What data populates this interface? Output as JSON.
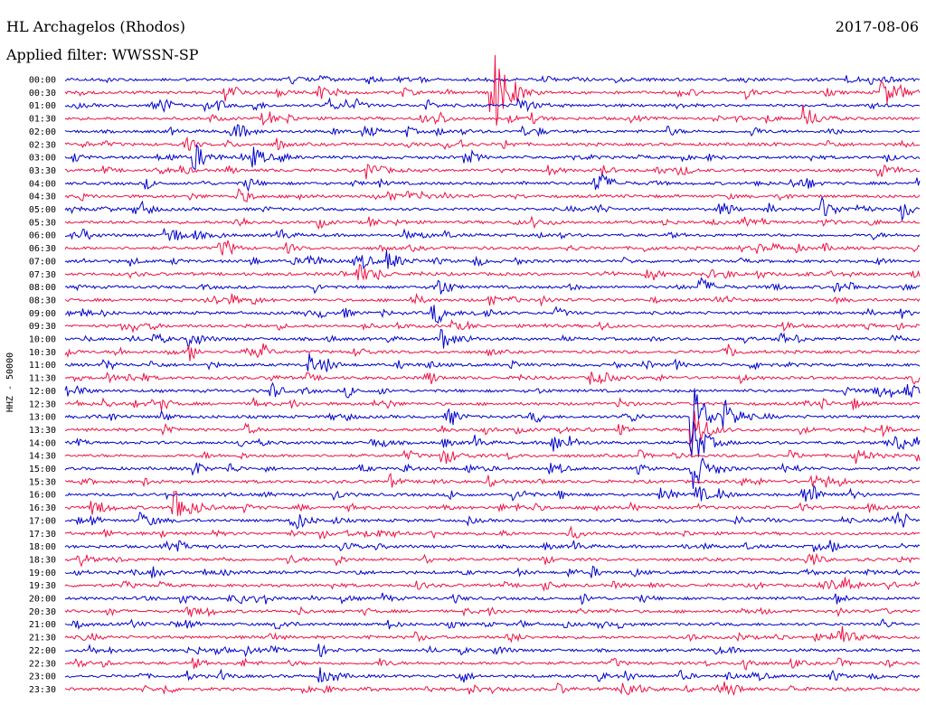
{
  "header": {
    "station": "HL Archagelos (Rhodos)",
    "filter": "Applied filter: WWSSN-SP",
    "date": "2017-08-06"
  },
  "chart_data": {
    "type": "line",
    "title": "HL Archagelos (Rhodos)",
    "subtitle": "Applied filter: WWSSN-SP",
    "ylabel": "HHZ - 50000",
    "rows": [
      "00:00",
      "00:30",
      "01:00",
      "01:30",
      "02:00",
      "02:30",
      "03:00",
      "03:30",
      "04:00",
      "04:30",
      "05:00",
      "05:30",
      "06:00",
      "06:30",
      "07:00",
      "07:30",
      "08:00",
      "08:30",
      "09:00",
      "09:30",
      "10:00",
      "10:30",
      "11:00",
      "11:30",
      "12:00",
      "12:30",
      "13:00",
      "13:30",
      "14:00",
      "14:30",
      "15:00",
      "15:30",
      "16:00",
      "16:30",
      "17:00",
      "17:30",
      "18:00",
      "18:30",
      "19:00",
      "19:30",
      "20:00",
      "20:30",
      "21:00",
      "21:30",
      "22:00",
      "22:30",
      "23:00",
      "23:30"
    ],
    "colors": [
      "#0000cc",
      "#ee1144"
    ],
    "events": [
      {
        "row": 1,
        "x": 545,
        "amp": 55
      },
      {
        "row": 1,
        "x": 250,
        "amp": 10
      },
      {
        "row": 1,
        "x": 977,
        "amp": 16
      },
      {
        "row": 2,
        "x": 575,
        "amp": 9
      },
      {
        "row": 3,
        "x": 890,
        "amp": 14
      },
      {
        "row": 4,
        "x": 258,
        "amp": 9
      },
      {
        "row": 6,
        "x": 215,
        "amp": 16
      },
      {
        "row": 6,
        "x": 282,
        "amp": 10
      },
      {
        "row": 7,
        "x": 408,
        "amp": 10
      },
      {
        "row": 8,
        "x": 660,
        "amp": 14
      },
      {
        "row": 10,
        "x": 997,
        "amp": 12
      },
      {
        "row": 10,
        "x": 910,
        "amp": 12
      },
      {
        "row": 12,
        "x": 185,
        "amp": 10
      },
      {
        "row": 14,
        "x": 430,
        "amp": 11
      },
      {
        "row": 14,
        "x": 340,
        "amp": 9
      },
      {
        "row": 15,
        "x": 398,
        "amp": 10
      },
      {
        "row": 16,
        "x": 775,
        "amp": 10
      },
      {
        "row": 18,
        "x": 480,
        "amp": 9
      },
      {
        "row": 20,
        "x": 490,
        "amp": 11
      },
      {
        "row": 20,
        "x": 210,
        "amp": 10
      },
      {
        "row": 22,
        "x": 343,
        "amp": 12
      },
      {
        "row": 23,
        "x": 655,
        "amp": 9
      },
      {
        "row": 24,
        "x": 1003,
        "amp": 9
      },
      {
        "row": 26,
        "x": 766,
        "amp": 44
      },
      {
        "row": 26,
        "x": 802,
        "amp": 16
      },
      {
        "row": 27,
        "x": 766,
        "amp": 30
      },
      {
        "row": 28,
        "x": 766,
        "amp": 30
      },
      {
        "row": 28,
        "x": 612,
        "amp": 10
      },
      {
        "row": 29,
        "x": 490,
        "amp": 11
      },
      {
        "row": 30,
        "x": 766,
        "amp": 26
      },
      {
        "row": 32,
        "x": 890,
        "amp": 11
      },
      {
        "row": 32,
        "x": 770,
        "amp": 10
      },
      {
        "row": 33,
        "x": 194,
        "amp": 24
      },
      {
        "row": 33,
        "x": 104,
        "amp": 10
      },
      {
        "row": 34,
        "x": 325,
        "amp": 11
      },
      {
        "row": 34,
        "x": 157,
        "amp": 9
      },
      {
        "row": 39,
        "x": 935,
        "amp": 9
      },
      {
        "row": 43,
        "x": 925,
        "amp": 16
      },
      {
        "row": 46,
        "x": 355,
        "amp": 8
      },
      {
        "row": 47,
        "x": 690,
        "amp": 14
      }
    ]
  }
}
